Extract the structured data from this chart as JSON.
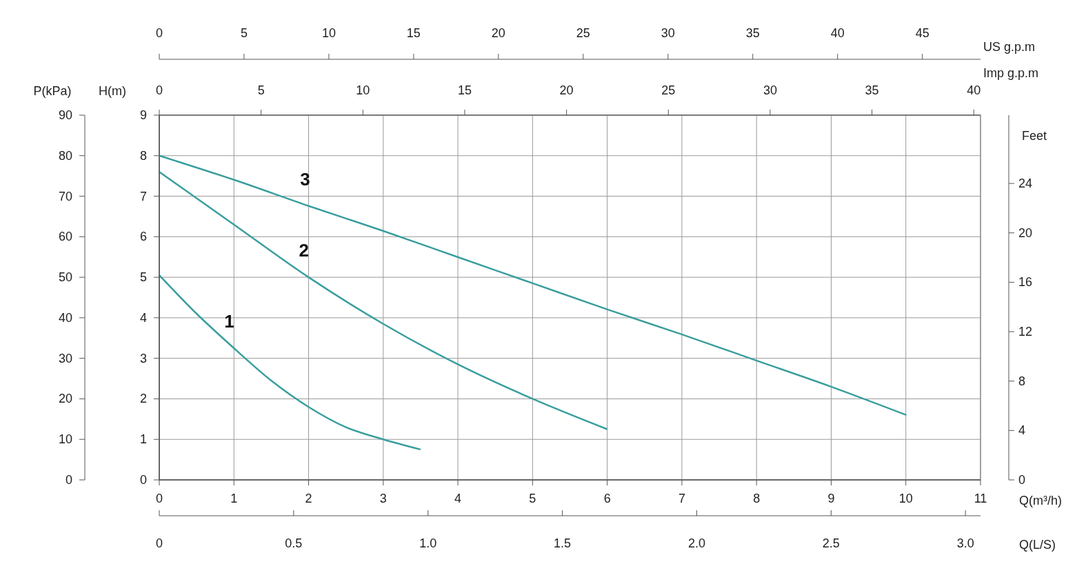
{
  "chart_data": [
    {
      "type": "line",
      "xlabel": "Q(m³/h)",
      "ylabel": "H(m)",
      "y2label": "P(kPa)",
      "y3label": "Feet",
      "x2label": "US  g.p.m",
      "xlim": [
        0,
        11
      ],
      "xticks": [
        0,
        1,
        2,
        3,
        4,
        5,
        6,
        7,
        8,
        9,
        10,
        11
      ],
      "ylim": [
        0,
        9
      ],
      "yticks": [
        0,
        1,
        2,
        3,
        4,
        5,
        6,
        7,
        8,
        9
      ],
      "y2lim": [
        0,
        90
      ],
      "y2ticks": [
        0,
        10,
        20,
        30,
        40,
        50,
        60,
        70,
        80,
        90
      ],
      "y3lim": [
        0,
        29.53
      ],
      "y3ticks": [
        0,
        4,
        8,
        12,
        16,
        20,
        24
      ],
      "x2lim": [
        0,
        48.43
      ],
      "x2ticks": [
        0,
        5,
        10,
        15,
        20,
        25,
        30,
        35,
        40,
        45
      ],
      "grid": true,
      "line_style": "solid",
      "marker": "none",
      "series": [
        {
          "name": "1",
          "color": "#3a9e9e",
          "x": [
            0,
            0.5,
            1,
            1.5,
            2,
            2.5,
            3,
            3.5
          ],
          "values": [
            5.05,
            4.1,
            3.25,
            2.45,
            1.8,
            1.3,
            1.0,
            0.75
          ]
        },
        {
          "name": "2",
          "color": "#3a9e9e",
          "x": [
            0,
            1,
            2,
            3,
            4,
            5,
            6
          ],
          "values": [
            7.6,
            6.3,
            5.0,
            3.85,
            2.85,
            2.0,
            1.25
          ]
        }
      ]
    },
    {
      "type": "line",
      "xlabel": "Q(L/S)",
      "x2label": "Imp  g.p.m",
      "tick_labels": "x",
      "xlim": [
        0,
        3.056
      ],
      "xticks": [
        0,
        {
          "value": 0.5,
          "label": "0.5"
        },
        {
          "value": 1,
          "label": "1.0"
        },
        {
          "value": 1.5,
          "label": "1.5"
        },
        {
          "value": 2,
          "label": "2.0"
        },
        {
          "value": 2.5,
          "label": "2.5"
        },
        {
          "value": 3,
          "label": "3.0"
        }
      ],
      "x2lim": [
        0,
        40.33
      ],
      "x2ticks": [
        0,
        5,
        10,
        15,
        20,
        25,
        30,
        35,
        40
      ],
      "ylim": [
        0,
        9
      ],
      "line_style": "solid",
      "marker": "none",
      "series": [
        {
          "name": "3",
          "color": "#3a9e9e",
          "x": [
            0,
            0.28,
            0.56,
            0.83,
            1.11,
            1.39,
            1.67,
            1.94,
            2.22,
            2.5,
            2.78
          ],
          "values": [
            8.0,
            7.4,
            6.75,
            6.15,
            5.5,
            4.85,
            4.2,
            3.6,
            2.95,
            2.3,
            1.6
          ]
        }
      ]
    }
  ]
}
